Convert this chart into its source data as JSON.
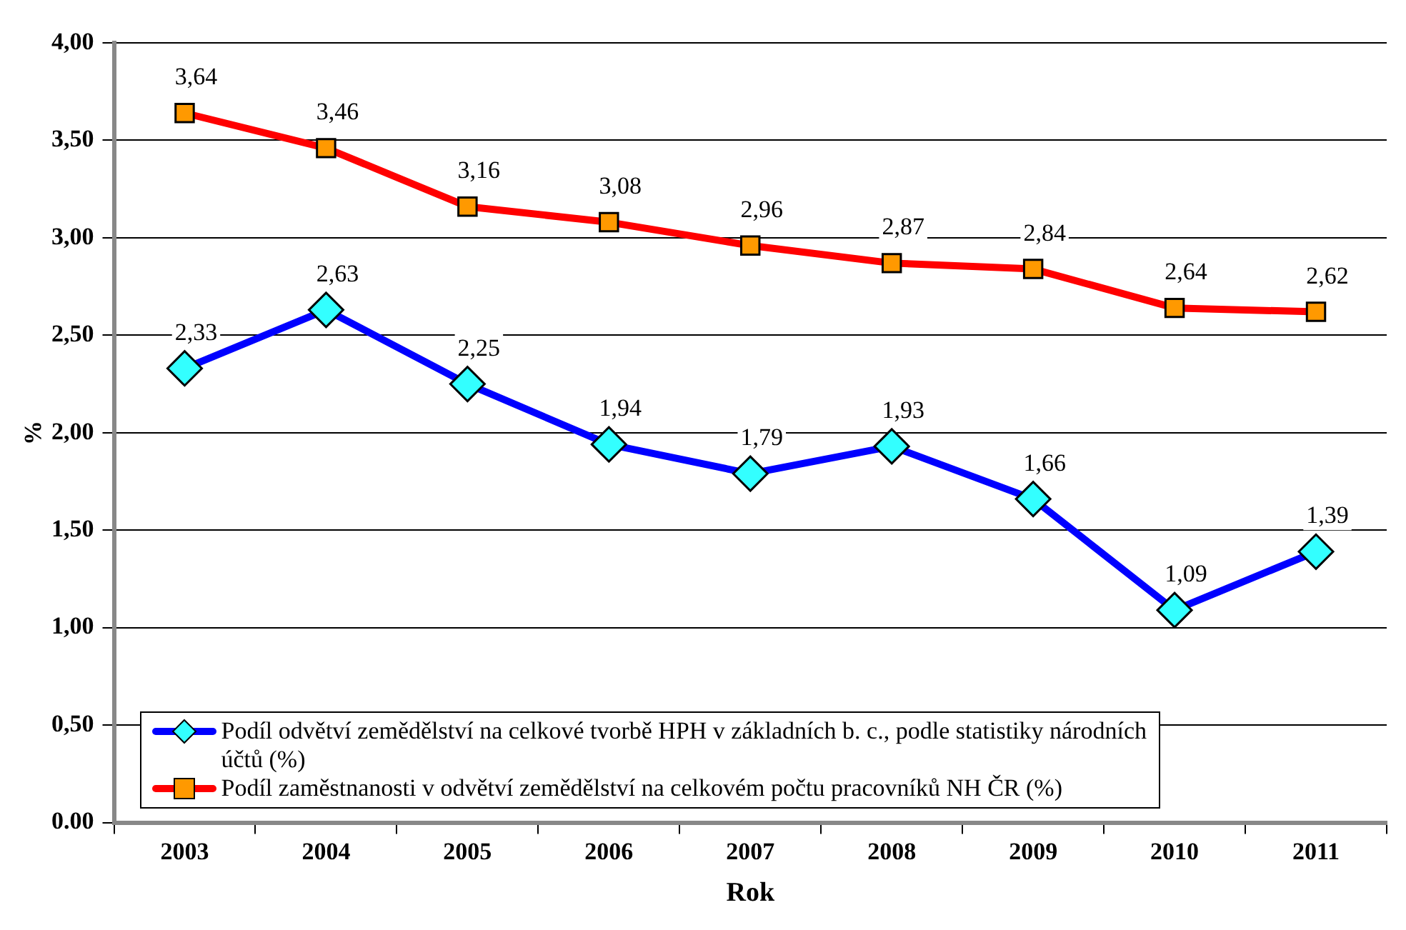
{
  "chart_data": {
    "type": "line",
    "xlabel": "Rok",
    "ylabel": "%",
    "categories": [
      "2003",
      "2004",
      "2005",
      "2006",
      "2007",
      "2008",
      "2009",
      "2010",
      "2011"
    ],
    "series": [
      {
        "name": "Podíl odvětví zemědělství na celkové tvorbě HPH v základních b. c., podle statistiky národních účtů (%)",
        "color": "#0000ff",
        "marker": "diamond",
        "colors": [
          "#33ffff",
          "#33ffff",
          "#33ffff",
          "#33ffff",
          "#33ffff",
          "#33ffff",
          "#33ffff",
          "#33ffff",
          "#33ffff"
        ],
        "values": [
          2.33,
          2.63,
          2.25,
          1.94,
          1.79,
          1.93,
          1.66,
          1.09,
          1.39
        ],
        "value_labels": [
          "2,33",
          "2,63",
          "2,25",
          "1,94",
          "1,79",
          "1,93",
          "1,66",
          "1,09",
          "1,39"
        ]
      },
      {
        "name": "Podíl zaměstnanosti v odvětví zemědělství na celkovém počtu pracovníků NH ČR (%)",
        "color": "#ff0000",
        "marker": "square",
        "colors": [
          "#ff9900",
          "#ff9900",
          "#ff9900",
          "#ff9900",
          "#ff9900",
          "#ff9900",
          "#ff9900",
          "#ff9900",
          "#ff9900"
        ],
        "values": [
          3.64,
          3.46,
          3.16,
          3.08,
          2.96,
          2.87,
          2.84,
          2.64,
          2.62
        ],
        "value_labels": [
          "3,64",
          "3,46",
          "3,16",
          "3,08",
          "2,96",
          "2,87",
          "2,84",
          "2,64",
          "2,62"
        ]
      }
    ],
    "ylim": [
      0,
      4
    ],
    "yticks": [
      {
        "value": 0,
        "label": "0.00"
      },
      {
        "value": 0.5,
        "label": "0,50"
      },
      {
        "value": 1,
        "label": "1,00"
      },
      {
        "value": 1.5,
        "label": "1,50"
      },
      {
        "value": 2,
        "label": "2,00"
      },
      {
        "value": 2.5,
        "label": "2,50"
      },
      {
        "value": 3,
        "label": "3,00"
      },
      {
        "value": 3.5,
        "label": "3,50"
      },
      {
        "value": 4,
        "label": "4,00"
      }
    ],
    "grid": "y",
    "legend": "bottom left",
    "line_style": "solid"
  }
}
